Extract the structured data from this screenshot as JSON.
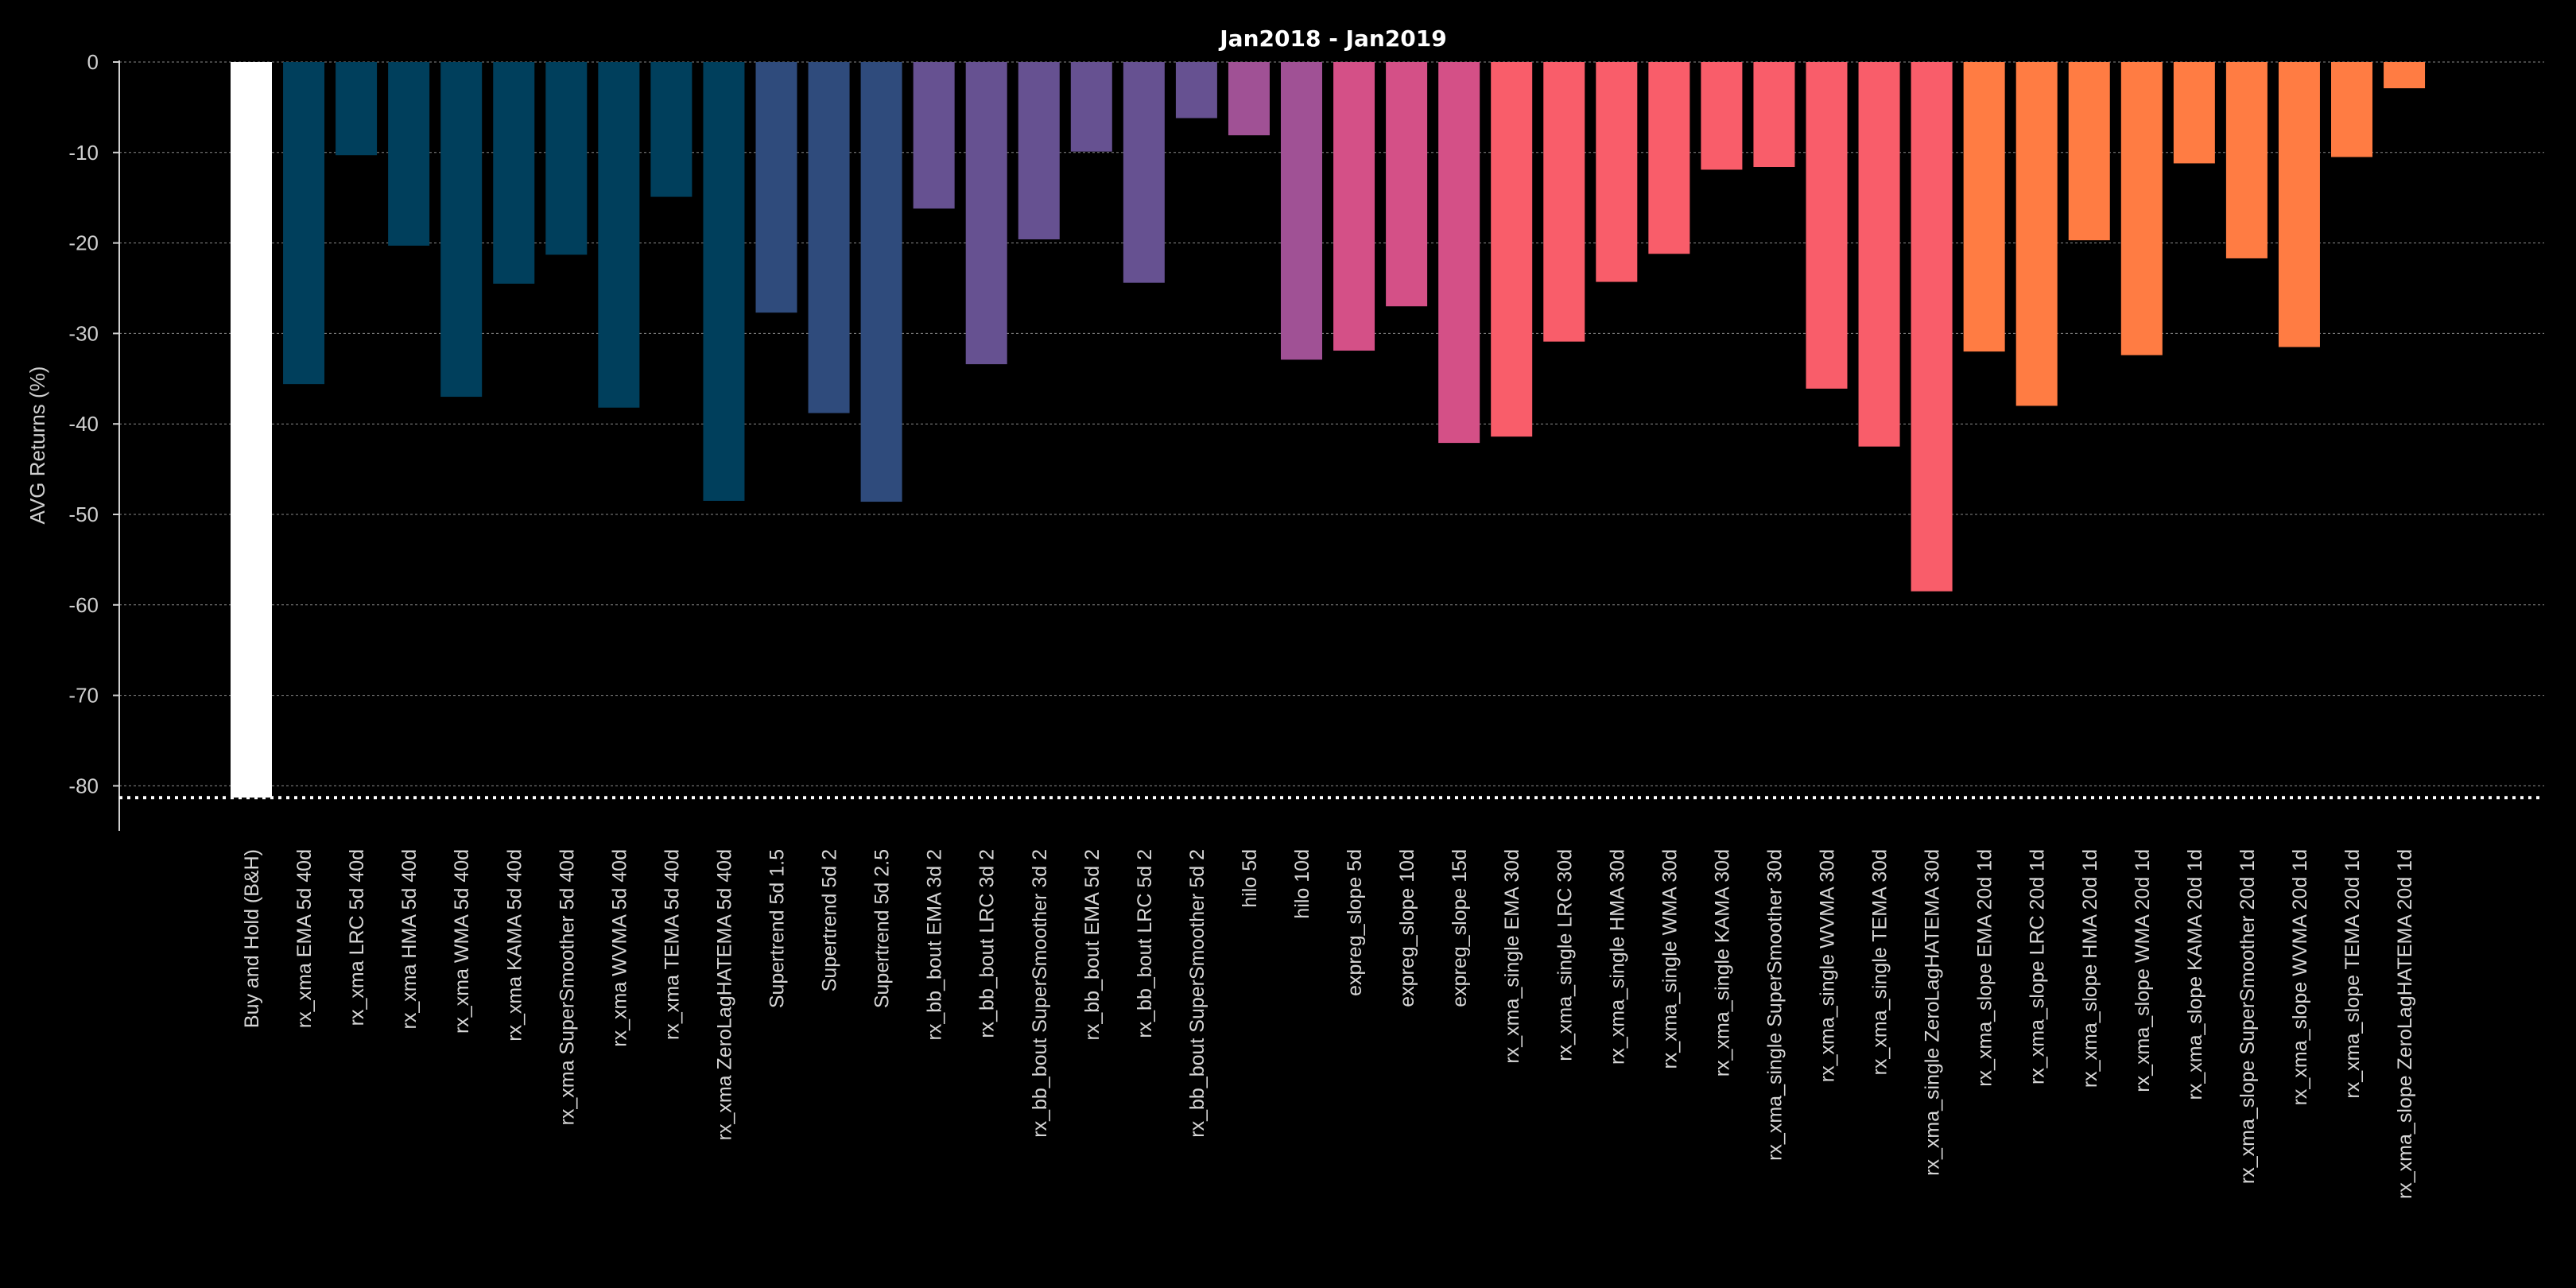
{
  "chart_data": {
    "type": "bar",
    "title": "Jan2018 - Jan2019",
    "xlabel": "",
    "ylabel": "AVG Returns (%)",
    "ylim": [
      -84,
      0
    ],
    "yticks": [
      0,
      -10,
      -20,
      -30,
      -40,
      -50,
      -60,
      -70,
      -80
    ],
    "grid": true,
    "reference_line": {
      "value": -81.3,
      "style": "dotted",
      "color": "#ffffff"
    },
    "categories": [
      "Buy and Hold (B&H)",
      "rx_xma   EMA   5d   40d",
      "rx_xma   LRC   5d   40d",
      "rx_xma   HMA   5d   40d",
      "rx_xma   WMA   5d   40d",
      "rx_xma   KAMA   5d   40d",
      "rx_xma   SuperSmoother   5d   40d",
      "rx_xma   WVMA   5d   40d",
      "rx_xma   TEMA   5d   40d",
      "rx_xma   ZeroLagHATEMA   5d   40d",
      "Supertrend   5d   1.5",
      "Supertrend   5d   2",
      "Supertrend   5d   2.5",
      "rx_bb_bout   EMA   3d   2",
      "rx_bb_bout   LRC   3d   2",
      "rx_bb_bout   SuperSmoother   3d   2",
      "rx_bb_bout   EMA   5d   2",
      "rx_bb_bout   LRC   5d   2",
      "rx_bb_bout   SuperSmoother   5d   2",
      "hilo   5d",
      "hilo   10d",
      "expreg_slope   5d",
      "expreg_slope   10d",
      "expreg_slope   15d",
      "rx_xma_single   EMA   30d",
      "rx_xma_single   LRC   30d",
      "rx_xma_single   HMA   30d",
      "rx_xma_single   WMA   30d",
      "rx_xma_single   KAMA   30d",
      "rx_xma_single   SuperSmoother   30d",
      "rx_xma_single   WVMA   30d",
      "rx_xma_single   TEMA   30d",
      "rx_xma_single   ZeroLagHATEMA   30d",
      "rx_xma_slope   EMA   20d   1d",
      "rx_xma_slope   LRC   20d   1d",
      "rx_xma_slope   HMA   20d   1d",
      "rx_xma_slope   WMA   20d   1d",
      "rx_xma_slope   KAMA   20d   1d",
      "rx_xma_slope   SuperSmoother   20d   1d",
      "rx_xma_slope   WVMA   20d   1d",
      "rx_xma_slope   TEMA   20d   1d",
      "rx_xma_slope   ZeroLagHATEMA   20d   1d"
    ],
    "values": [
      -81.3,
      -35.6,
      -10.3,
      -20.3,
      -37.0,
      -24.5,
      -21.3,
      -38.2,
      -14.9,
      -48.5,
      -27.7,
      -38.8,
      -48.6,
      -16.2,
      -33.4,
      -19.6,
      -9.9,
      -24.4,
      -6.2,
      -8.1,
      -32.9,
      -31.9,
      -27.0,
      -42.1,
      -41.4,
      -30.9,
      -24.3,
      -21.2,
      -11.9,
      -11.6,
      -36.1,
      -42.5,
      -58.5,
      -32.0,
      -38.0,
      -19.7,
      -32.4,
      -11.2,
      -21.7,
      -31.5,
      -10.5,
      -2.9
    ],
    "colors": [
      "#ffffff",
      "#003f5c",
      "#003f5c",
      "#003f5c",
      "#003f5c",
      "#003f5c",
      "#003f5c",
      "#003f5c",
      "#003f5c",
      "#003f5c",
      "#2f4b7c",
      "#2f4b7c",
      "#2f4b7c",
      "#665191",
      "#665191",
      "#665191",
      "#665191",
      "#665191",
      "#665191",
      "#a05195",
      "#a05195",
      "#d45087",
      "#d45087",
      "#d45087",
      "#f95d6a",
      "#f95d6a",
      "#f95d6a",
      "#f95d6a",
      "#f95d6a",
      "#f95d6a",
      "#f95d6a",
      "#f95d6a",
      "#f95d6a",
      "#ff7c43",
      "#ff7c43",
      "#ff7c43",
      "#ff7c43",
      "#ff7c43",
      "#ff7c43",
      "#ff7c43",
      "#ff7c43",
      "#ff7c43"
    ]
  }
}
